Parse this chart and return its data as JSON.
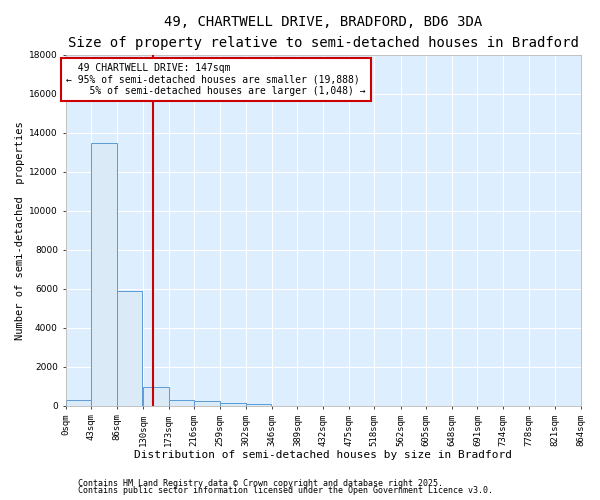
{
  "title": "49, CHARTWELL DRIVE, BRADFORD, BD6 3DA",
  "subtitle": "Size of property relative to semi-detached houses in Bradford",
  "xlabel": "Distribution of semi-detached houses by size in Bradford",
  "ylabel": "Number of semi-detached  properties",
  "bin_edges": [
    0,
    43,
    86,
    130,
    173,
    216,
    259,
    302,
    346,
    389,
    432,
    475,
    518,
    562,
    605,
    648,
    691,
    734,
    778,
    821,
    864
  ],
  "bar_heights": [
    300,
    13500,
    5900,
    950,
    300,
    250,
    150,
    100,
    0,
    0,
    0,
    0,
    0,
    0,
    0,
    0,
    0,
    0,
    0,
    0
  ],
  "bar_color": "#daeaf7",
  "bar_edgecolor": "#5b9bd5",
  "property_size": 147,
  "red_line_color": "#cc0000",
  "annotation_text": "  49 CHARTWELL DRIVE: 147sqm\n← 95% of semi-detached houses are smaller (19,888)\n    5% of semi-detached houses are larger (1,048) →",
  "annotation_box_color": "#ffffff",
  "annotation_box_edgecolor": "#cc0000",
  "ylim": [
    0,
    18000
  ],
  "yticks": [
    0,
    2000,
    4000,
    6000,
    8000,
    10000,
    12000,
    14000,
    16000,
    18000
  ],
  "xtick_labels": [
    "0sqm",
    "43sqm",
    "86sqm",
    "130sqm",
    "173sqm",
    "216sqm",
    "259sqm",
    "302sqm",
    "346sqm",
    "389sqm",
    "432sqm",
    "475sqm",
    "518sqm",
    "562sqm",
    "605sqm",
    "648sqm",
    "691sqm",
    "734sqm",
    "778sqm",
    "821sqm",
    "864sqm"
  ],
  "footer_line1": "Contains HM Land Registry data © Crown copyright and database right 2025.",
  "footer_line2": "Contains public sector information licensed under the Open Government Licence v3.0.",
  "bg_color": "#ffffff",
  "plot_bg_color": "#ddeeff",
  "grid_color": "#ffffff",
  "title_fontsize": 10,
  "subtitle_fontsize": 8.5,
  "xlabel_fontsize": 8,
  "ylabel_fontsize": 7.5,
  "tick_fontsize": 6.5,
  "annotation_fontsize": 7,
  "footer_fontsize": 6
}
